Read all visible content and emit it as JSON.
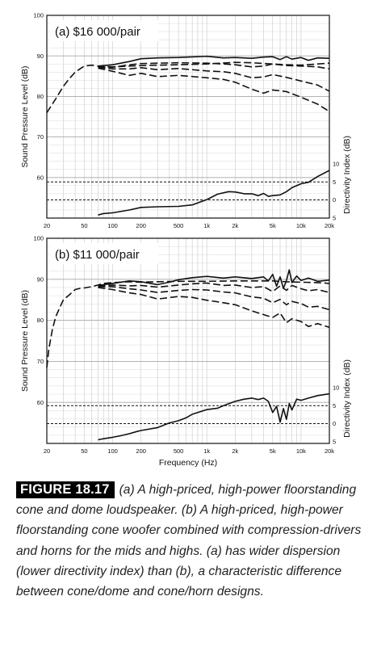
{
  "chart_data": [
    {
      "type": "line",
      "title": "(a) $16 000/pair",
      "ylabel": "Sound Pressure Level (dB)",
      "y2label": "Directivity Index (dB)",
      "xscale": "log",
      "xlim": [
        20,
        20000
      ],
      "ylim": [
        50,
        100
      ],
      "x_ticks": [
        20,
        50,
        100,
        200,
        500,
        1000,
        2000,
        5000,
        10000,
        20000
      ],
      "x_tick_labels": [
        "20",
        "50",
        "100",
        "200",
        "500",
        "1k",
        "2k",
        "5k",
        "10k",
        "20k"
      ],
      "y_ticks": [
        60,
        70,
        80,
        90,
        100
      ],
      "y_tick_labels": [
        "60",
        "70",
        "80",
        "90",
        "100"
      ],
      "y2_ticks": [
        10,
        5,
        0,
        -5
      ],
      "y2_tick_labels": [
        "10",
        "5",
        "0",
        "5"
      ],
      "grid": true,
      "series": [
        {
          "style": "dashed",
          "x": [
            20,
            25,
            30,
            35,
            40,
            45,
            50,
            60,
            70,
            80,
            100,
            150,
            200,
            300,
            500,
            1000,
            2000,
            3000,
            5000,
            7000,
            10000,
            15000,
            20000
          ],
          "y": [
            76,
            79.5,
            82.5,
            84.5,
            86,
            86.8,
            87.5,
            87.7,
            87.5,
            87.4,
            87.3,
            87.5,
            87.6,
            87.7,
            87.8,
            88,
            88.4,
            88.3,
            88,
            87.8,
            87.7,
            88,
            88.2
          ]
        },
        {
          "style": "solid",
          "x": [
            70,
            100,
            150,
            200,
            300,
            500,
            1000,
            1500,
            2000,
            3000,
            4000,
            5000,
            6000,
            7000,
            8000,
            10000,
            12000,
            15000,
            20000
          ],
          "y": [
            87.5,
            87.8,
            88.6,
            89.3,
            89.5,
            89.6,
            89.9,
            89.5,
            89.6,
            89.4,
            89.7,
            89.8,
            89.1,
            89.8,
            89.2,
            89.6,
            88.9,
            89.5,
            89.4
          ]
        },
        {
          "style": "dashed",
          "x": [
            70,
            100,
            150,
            200,
            300,
            500,
            1000,
            1500,
            2000,
            3000,
            4000,
            5000,
            7000,
            10000,
            15000,
            20000
          ],
          "y": [
            87.3,
            87.2,
            87.8,
            88.1,
            88.2,
            88.3,
            88.2,
            88,
            87.8,
            87.3,
            87.5,
            88,
            87.6,
            87.5,
            87.3,
            86.8
          ]
        },
        {
          "style": "dashed",
          "x": [
            70,
            100,
            150,
            200,
            300,
            500,
            1000,
            1500,
            2000,
            3000,
            4000,
            5000,
            7000,
            10000,
            15000,
            20000
          ],
          "y": [
            87.2,
            86.8,
            86.8,
            87.1,
            86.6,
            86.9,
            86.3,
            86.1,
            85.7,
            84.6,
            84.8,
            85.4,
            84.7,
            83.8,
            82.8,
            81.3
          ]
        },
        {
          "style": "dashed",
          "x": [
            70,
            100,
            150,
            200,
            300,
            500,
            1000,
            1500,
            2000,
            3000,
            4000,
            5000,
            7000,
            10000,
            15000,
            20000
          ],
          "y": [
            87,
            86.2,
            85.2,
            85.7,
            84.9,
            85.2,
            84.6,
            84.2,
            83.5,
            81.8,
            80.8,
            81.6,
            81.2,
            79.8,
            78.1,
            76.3
          ]
        },
        {
          "style": "solid",
          "axis": "directivity",
          "x": [
            70,
            80,
            100,
            150,
            200,
            300,
            500,
            700,
            1000,
            1300,
            1700,
            2000,
            2500,
            3000,
            3500,
            4000,
            4500,
            5000,
            6000,
            7000,
            8000,
            10000,
            12000,
            15000,
            20000
          ],
          "y": [
            -4.2,
            -3.8,
            -3.6,
            -2.8,
            -2.1,
            -1.9,
            -1.8,
            -1.4,
            0.1,
            1.6,
            2.3,
            2.2,
            1.7,
            1.7,
            1.2,
            1.8,
            1,
            1.2,
            1.4,
            2.3,
            3.4,
            4.5,
            4.9,
            6.5,
            8.2
          ]
        }
      ],
      "reference_lines": [
        {
          "axis": "directivity",
          "y": 5,
          "style": "dashed"
        },
        {
          "axis": "directivity",
          "y": 0,
          "style": "dashed"
        }
      ]
    },
    {
      "type": "line",
      "title": "(b) $11 000/pair",
      "ylabel": "Sound Pressure Level (dB)",
      "y2label": "Directivity Index (dB)",
      "xlabel": "Frequency (Hz)",
      "xscale": "log",
      "xlim": [
        20,
        20000
      ],
      "ylim": [
        50,
        100
      ],
      "x_ticks": [
        20,
        50,
        100,
        200,
        500,
        1000,
        2000,
        5000,
        10000,
        20000
      ],
      "x_tick_labels": [
        "20",
        "50",
        "100",
        "200",
        "500",
        "1k",
        "2k",
        "5k",
        "10k",
        "20k"
      ],
      "y_ticks": [
        60,
        70,
        80,
        90,
        100
      ],
      "y_tick_labels": [
        "60",
        "70",
        "80",
        "90",
        "100"
      ],
      "y2_ticks": [
        10,
        5,
        0,
        -5
      ],
      "y2_tick_labels": [
        "10",
        "5",
        "0",
        "5"
      ],
      "grid": true,
      "series": [
        {
          "style": "dashed",
          "x": [
            20,
            21,
            23,
            25,
            28,
            30,
            35,
            40,
            45,
            50,
            60,
            70,
            80,
            100,
            150,
            200,
            300,
            500,
            1000,
            2000,
            3000,
            5000,
            7000,
            10000,
            15000,
            20000
          ],
          "y": [
            68.5,
            73,
            78,
            81,
            83.5,
            85,
            86.3,
            87.5,
            87.8,
            87.9,
            88.2,
            88.6,
            89,
            89.2,
            89.4,
            89.3,
            89.4,
            89.5,
            89.5,
            89.6,
            89.6,
            89.6,
            89.4,
            89.3,
            89.2,
            89
          ]
        },
        {
          "style": "solid",
          "x": [
            70,
            100,
            150,
            200,
            300,
            400,
            500,
            700,
            1000,
            1500,
            2000,
            3000,
            4000,
            4500,
            5000,
            5500,
            6000,
            6500,
            7000,
            7500,
            8000,
            9000,
            10000,
            12000,
            15000,
            20000
          ],
          "y": [
            88.5,
            89,
            89.6,
            89.4,
            88.7,
            89.3,
            89.9,
            90.4,
            90.7,
            90.3,
            90.6,
            90.2,
            90.6,
            89.6,
            91.2,
            88.3,
            90.6,
            87.8,
            89.7,
            92.3,
            89.2,
            90.8,
            89.7,
            90.3,
            89.5,
            89.8
          ]
        },
        {
          "style": "dashed",
          "x": [
            70,
            100,
            150,
            200,
            300,
            500,
            700,
            1000,
            1500,
            2000,
            3000,
            4000,
            5000,
            6000,
            7000,
            8000,
            10000,
            12000,
            15000,
            20000
          ],
          "y": [
            88.3,
            88.6,
            88.4,
            88.5,
            88.1,
            88.6,
            88.9,
            89.1,
            88.5,
            88.6,
            88,
            88.2,
            87,
            88.4,
            87.3,
            88.5,
            87.7,
            87.2,
            87.5,
            86.8
          ]
        },
        {
          "style": "dashed",
          "x": [
            70,
            100,
            150,
            200,
            300,
            500,
            700,
            1000,
            1500,
            2000,
            3000,
            4000,
            5000,
            6000,
            7000,
            8000,
            10000,
            12000,
            15000,
            20000
          ],
          "y": [
            88.2,
            88.2,
            87.7,
            87.4,
            86.8,
            87.3,
            87.5,
            87.4,
            86.9,
            86.7,
            85.7,
            85.4,
            84.3,
            85.1,
            83.8,
            84.6,
            84.1,
            83.2,
            83.4,
            82.6
          ]
        },
        {
          "style": "dashed",
          "x": [
            70,
            100,
            150,
            200,
            300,
            500,
            700,
            1000,
            1500,
            2000,
            3000,
            4000,
            5000,
            6000,
            7000,
            8000,
            10000,
            12000,
            15000,
            20000
          ],
          "y": [
            88,
            87.5,
            86.7,
            86.3,
            85.2,
            85.8,
            85.6,
            84.9,
            84.3,
            83.8,
            82.3,
            81.4,
            80.7,
            81.8,
            79.4,
            80.4,
            79.7,
            78.5,
            79.2,
            78.3
          ]
        },
        {
          "style": "solid",
          "axis": "directivity",
          "x": [
            70,
            80,
            100,
            120,
            150,
            180,
            200,
            300,
            400,
            500,
            600,
            700,
            800,
            1000,
            1300,
            1500,
            2000,
            2500,
            3000,
            3500,
            4000,
            4500,
            5000,
            5500,
            6000,
            6500,
            7000,
            7500,
            8000,
            9000,
            10000,
            12000,
            15000,
            20000
          ],
          "y": [
            -4.5,
            -4.2,
            -3.8,
            -3.4,
            -2.8,
            -2.2,
            -1.9,
            -1.1,
            0.2,
            0.8,
            1.6,
            2.6,
            3.1,
            3.9,
            4.3,
            5,
            6.2,
            6.8,
            7.1,
            6.7,
            7.1,
            6.2,
            3.1,
            4.8,
            0.4,
            4.2,
            1.2,
            5.6,
            3.8,
            6.8,
            6.5,
            7.1,
            7.8,
            8.3
          ]
        }
      ],
      "reference_lines": [
        {
          "axis": "directivity",
          "y": 5,
          "style": "dashed"
        },
        {
          "axis": "directivity",
          "y": 0,
          "style": "dashed"
        }
      ]
    }
  ],
  "caption": {
    "label": "FIGURE 18.17",
    "text": "(a) A high-priced, high-power floorstanding cone and dome loudspeaker. (b) A high-priced, high-power floorstanding cone woofer combined with compression-drivers and horns for the mids and highs. (a) has wider dispersion (lower directivity index) than (b), a characteristic difference between cone/dome and cone/horn designs."
  }
}
